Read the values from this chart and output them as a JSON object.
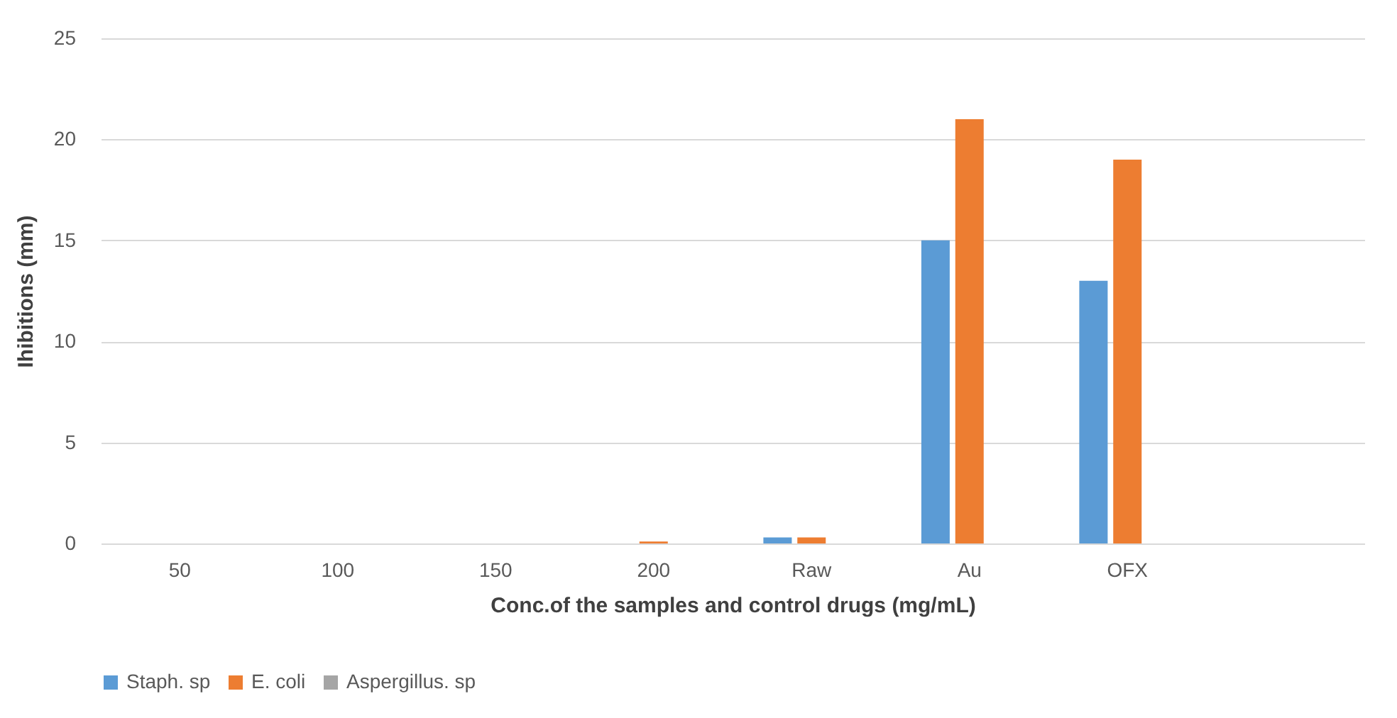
{
  "chart_data": {
    "type": "bar",
    "xlabel": "Conc.of the samples and control drugs (mg/mL)",
    "ylabel": "Ihibitions (mm)",
    "categories": [
      "50",
      "100",
      "150",
      "200",
      "Raw",
      "Au",
      "OFX",
      null
    ],
    "series": [
      {
        "name": "Staph. sp",
        "color": "#5b9bd5",
        "values": [
          0,
          0,
          0,
          0,
          0.3,
          15,
          13,
          null
        ]
      },
      {
        "name": "E. coli",
        "color": "#ed7d31",
        "values": [
          0,
          0,
          0,
          0.1,
          0.3,
          21,
          19,
          null
        ]
      },
      {
        "name": "Aspergillus. sp",
        "color": "#a5a5a5",
        "values": [
          0,
          0,
          0,
          0,
          0,
          0,
          0,
          null
        ]
      }
    ],
    "ylim": [
      0,
      25
    ],
    "yticks": [
      0,
      5,
      10,
      15,
      20,
      25
    ],
    "grid": "y",
    "legend": "bottom"
  }
}
